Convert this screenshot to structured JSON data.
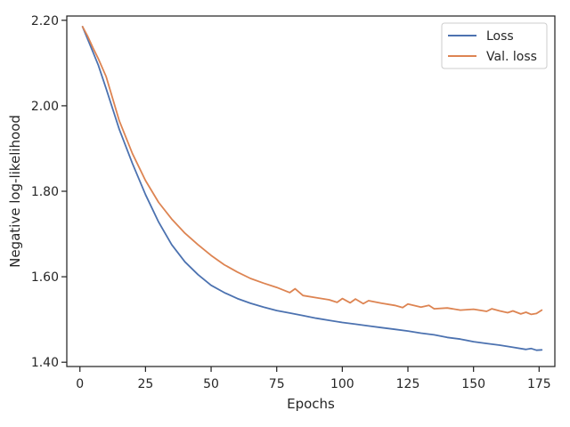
{
  "chart_data": {
    "type": "line",
    "title": "",
    "xlabel": "Epochs",
    "ylabel": "Negative log-likelihood",
    "xlim": [
      -5,
      181
    ],
    "ylim": [
      1.39,
      2.21
    ],
    "xticks": [
      0,
      25,
      50,
      75,
      100,
      125,
      150,
      175
    ],
    "xtick_labels": [
      "0",
      "25",
      "50",
      "75",
      "100",
      "125",
      "150",
      "175"
    ],
    "yticks": [
      1.4,
      1.6,
      1.8,
      2.0,
      2.2
    ],
    "ytick_labels": [
      "1.40",
      "1.60",
      "1.80",
      "2.00",
      "2.20"
    ],
    "grid": false,
    "legend_position": "top-right",
    "series": [
      {
        "name": "Loss",
        "color": "#4c72b0",
        "x": [
          1,
          3,
          5,
          7,
          10,
          15,
          20,
          25,
          30,
          35,
          40,
          45,
          50,
          55,
          60,
          65,
          70,
          75,
          80,
          85,
          90,
          95,
          100,
          105,
          110,
          115,
          120,
          125,
          130,
          135,
          140,
          145,
          150,
          155,
          160,
          165,
          170,
          172,
          174,
          176
        ],
        "y": [
          2.185,
          2.155,
          2.125,
          2.095,
          2.04,
          1.945,
          1.865,
          1.792,
          1.728,
          1.675,
          1.635,
          1.605,
          1.58,
          1.563,
          1.549,
          1.538,
          1.529,
          1.521,
          1.515,
          1.509,
          1.503,
          1.498,
          1.493,
          1.489,
          1.485,
          1.481,
          1.477,
          1.473,
          1.468,
          1.464,
          1.458,
          1.454,
          1.448,
          1.444,
          1.44,
          1.435,
          1.43,
          1.432,
          1.428,
          1.429
        ]
      },
      {
        "name": "Val. loss",
        "color": "#dd8452",
        "x": [
          1,
          3,
          5,
          7,
          10,
          15,
          20,
          25,
          30,
          35,
          40,
          45,
          50,
          55,
          60,
          65,
          70,
          75,
          80,
          82,
          85,
          90,
          95,
          98,
          100,
          103,
          105,
          108,
          110,
          115,
          120,
          123,
          125,
          130,
          133,
          135,
          140,
          145,
          150,
          155,
          157,
          160,
          163,
          165,
          168,
          170,
          172,
          174,
          176
        ],
        "y": [
          2.185,
          2.162,
          2.135,
          2.11,
          2.068,
          1.965,
          1.888,
          1.825,
          1.774,
          1.735,
          1.702,
          1.675,
          1.65,
          1.628,
          1.611,
          1.596,
          1.585,
          1.575,
          1.563,
          1.572,
          1.556,
          1.551,
          1.546,
          1.54,
          1.549,
          1.539,
          1.548,
          1.537,
          1.544,
          1.538,
          1.533,
          1.528,
          1.536,
          1.529,
          1.533,
          1.525,
          1.527,
          1.522,
          1.524,
          1.519,
          1.525,
          1.52,
          1.516,
          1.52,
          1.513,
          1.517,
          1.512,
          1.514,
          1.522
        ]
      }
    ]
  }
}
